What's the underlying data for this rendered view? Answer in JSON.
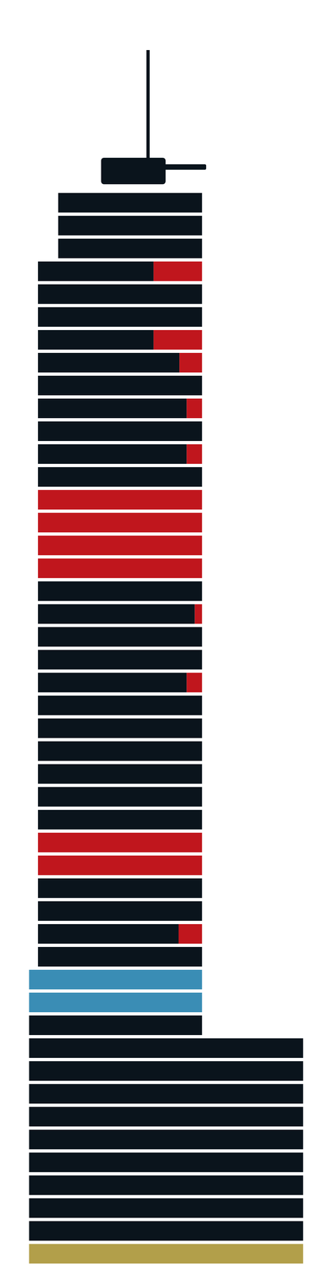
{
  "chart_data": {
    "type": "bar",
    "orientation": "horizontal",
    "stacked": true,
    "tick_labels": false,
    "xlim": [
      0,
      412
    ],
    "categories": [
      null,
      null,
      null,
      null,
      null,
      null,
      null,
      null,
      null,
      null,
      null,
      null,
      null,
      null,
      null,
      null,
      null,
      null,
      null,
      null,
      null,
      null,
      null,
      null,
      null,
      null,
      null,
      null,
      null,
      null,
      null,
      null,
      null,
      null,
      null,
      null,
      null,
      null,
      null,
      null,
      null,
      null,
      null,
      null,
      null,
      null,
      null
    ],
    "series": [
      {
        "color": "transparent",
        "values": [
          72,
          72,
          72,
          47,
          47,
          47,
          47,
          47,
          47,
          47,
          47,
          47,
          47,
          47,
          47,
          47,
          47,
          47,
          47,
          47,
          47,
          47,
          47,
          47,
          47,
          47,
          47,
          47,
          47,
          47,
          47,
          47,
          47,
          47,
          36,
          36,
          36,
          36,
          36,
          36,
          36,
          36,
          36,
          36,
          36,
          36,
          36
        ]
      },
      {
        "color": "#0a141c",
        "values": [
          178,
          178,
          178,
          143,
          203,
          203,
          143,
          175,
          203,
          184,
          203,
          184,
          203,
          0,
          0,
          0,
          0,
          203,
          194,
          203,
          203,
          184,
          203,
          203,
          203,
          203,
          203,
          203,
          0,
          0,
          203,
          203,
          174,
          203,
          0,
          0,
          214,
          339,
          339,
          339,
          339,
          339,
          339,
          339,
          339,
          339,
          0
        ]
      },
      {
        "color": "#c0161d",
        "values": [
          0,
          0,
          0,
          60,
          0,
          0,
          60,
          28,
          0,
          19,
          0,
          19,
          0,
          203,
          203,
          203,
          203,
          0,
          9,
          0,
          0,
          19,
          0,
          0,
          0,
          0,
          0,
          0,
          203,
          203,
          0,
          0,
          29,
          0,
          0,
          0,
          0,
          0,
          0,
          0,
          0,
          0,
          0,
          0,
          0,
          0,
          0
        ]
      },
      {
        "color": "#3a8db5",
        "values": [
          0,
          0,
          0,
          0,
          0,
          0,
          0,
          0,
          0,
          0,
          0,
          0,
          0,
          0,
          0,
          0,
          0,
          0,
          0,
          0,
          0,
          0,
          0,
          0,
          0,
          0,
          0,
          0,
          0,
          0,
          0,
          0,
          0,
          0,
          214,
          214,
          0,
          0,
          0,
          0,
          0,
          0,
          0,
          0,
          0,
          0,
          0
        ]
      },
      {
        "color": "#b29f4a",
        "values": [
          0,
          0,
          0,
          0,
          0,
          0,
          0,
          0,
          0,
          0,
          0,
          0,
          0,
          0,
          0,
          0,
          0,
          0,
          0,
          0,
          0,
          0,
          0,
          0,
          0,
          0,
          0,
          0,
          0,
          0,
          0,
          0,
          0,
          0,
          0,
          0,
          0,
          0,
          0,
          0,
          0,
          0,
          0,
          0,
          0,
          0,
          339
        ]
      }
    ]
  }
}
